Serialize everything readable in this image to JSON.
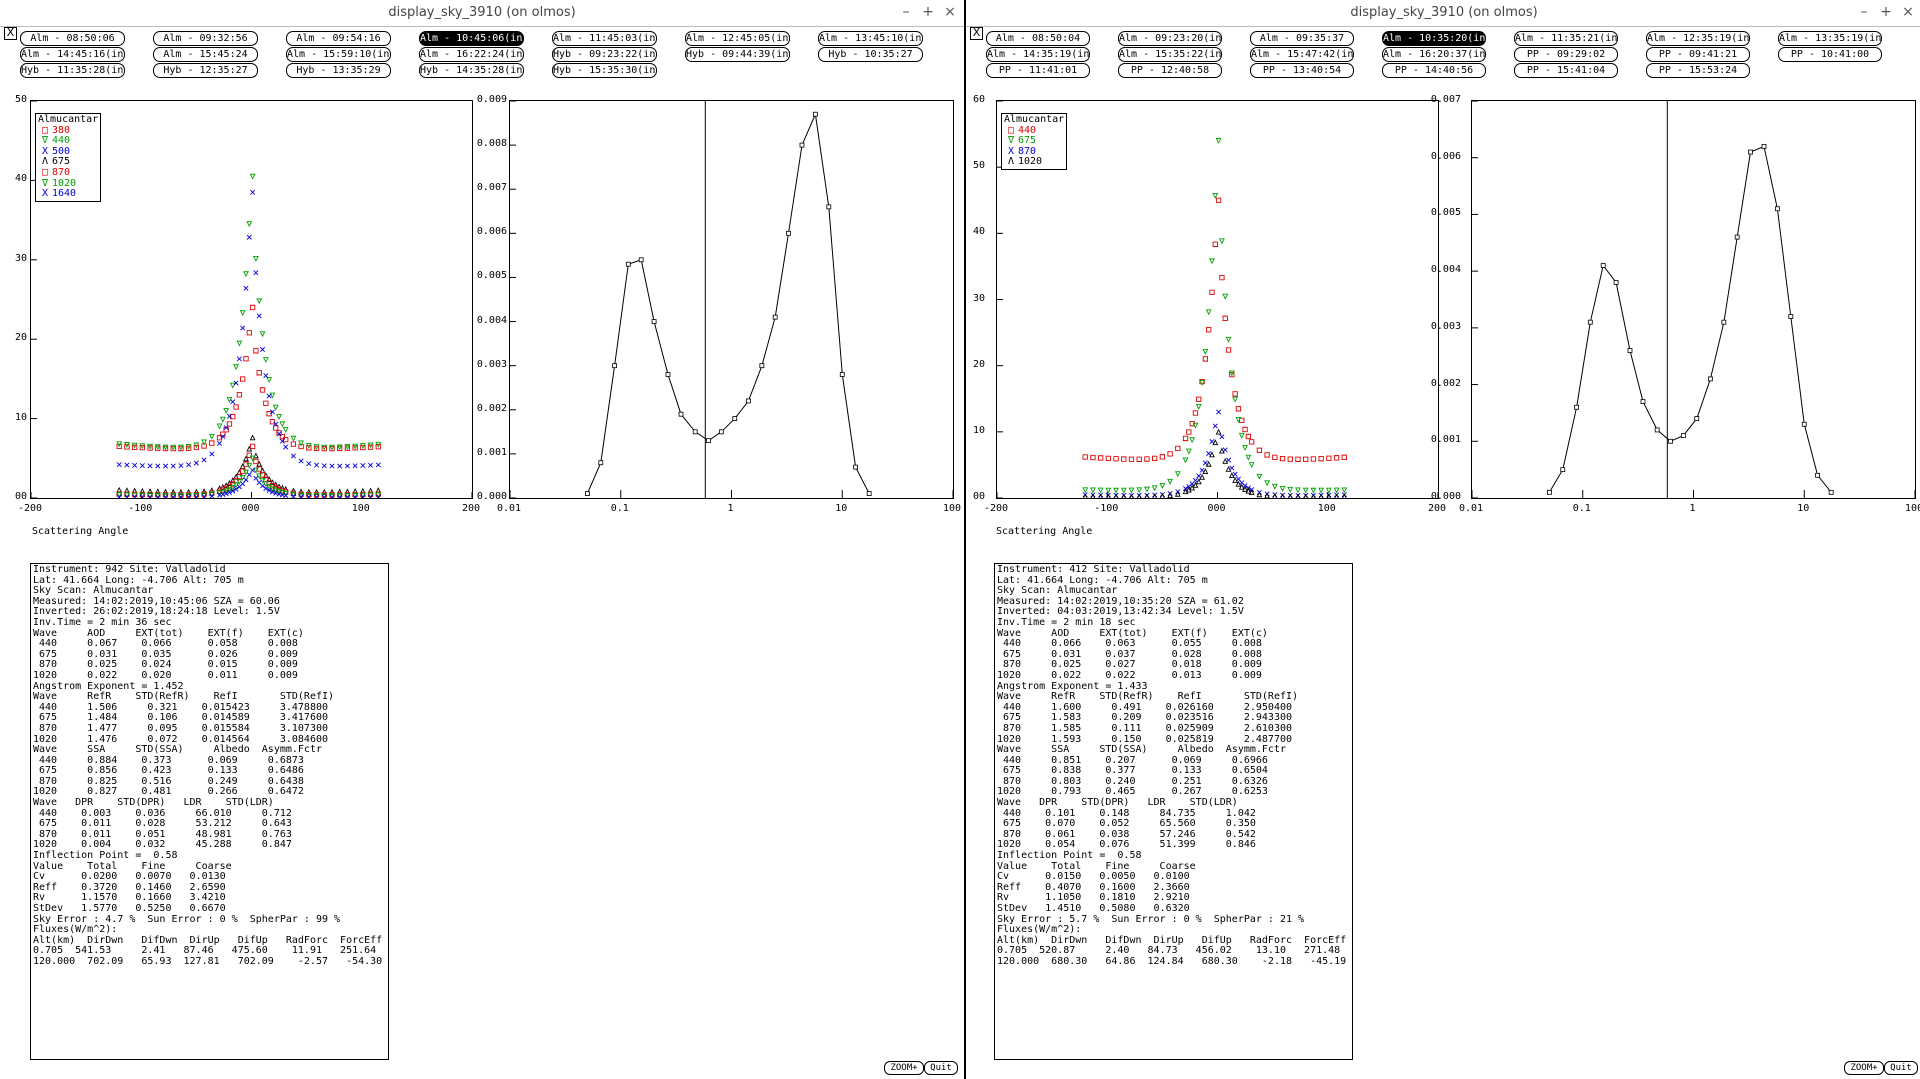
{
  "windows": [
    {
      "title": "display_sky_3910 (on olmos)",
      "buttons": {
        "minimize": "–",
        "maximize": "+",
        "close": "×"
      },
      "closebox": "X",
      "scans": [
        [
          "Alm - 08:50:06",
          "Alm - 09:32:56",
          "Alm - 09:54:16",
          "Alm - 10:45:06(in)",
          "Alm - 11:45:03(in)",
          "Alm - 12:45:05(in)",
          "Alm - 13:45:10(in)"
        ],
        [
          "Alm - 14:45:16(in)",
          "Alm - 15:45:24",
          "Alm - 15:59:10(in)",
          "Alm - 16:22:24(in)",
          "Hyb - 09:23:22(in)",
          "Hyb - 09:44:39(in)",
          "Hyb - 10:35:27"
        ],
        [
          "Hyb - 11:35:28(in)",
          "Hyb - 12:35:27",
          "Hyb - 13:35:29",
          "Hyb - 14:35:28(in)",
          "Hyb - 15:35:30(in)"
        ]
      ],
      "selected_scan": "Alm - 10:45:06(in)",
      "legend_title": "Almucantar",
      "legend": [
        {
          "label": "380",
          "color": "#e00000",
          "symbol": "square"
        },
        {
          "label": "440",
          "color": "#00a000",
          "symbol": "triangle-down"
        },
        {
          "label": "500",
          "color": "#0000e0",
          "symbol": "x"
        },
        {
          "label": "675",
          "color": "#000000",
          "symbol": "triangle-up"
        },
        {
          "label": "870",
          "color": "#e00000",
          "symbol": "square"
        },
        {
          "label": "1020",
          "color": "#00a000",
          "symbol": "triangle-down"
        },
        {
          "label": "1640",
          "color": "#0000e0",
          "symbol": "x"
        }
      ],
      "x_label": "Scattering Angle",
      "info_lines": [
        "Instrument: 942 Site: Valladolid",
        "Lat: 41.664 Long: -4.706 Alt: 705 m",
        "Sky Scan: Almucantar",
        "Measured: 14:02:2019,10:45:06 SZA = 60.06",
        "Inverted: 26:02:2019,18:24:18 Level: 1.5V",
        "Inv.Time = 2 min 36 sec",
        "Wave     AOD     EXT(tot)    EXT(f)    EXT(c)",
        " 440     0.067    0.066      0.058     0.008",
        " 675     0.031    0.035      0.026     0.009",
        " 870     0.025    0.024      0.015     0.009",
        "1020     0.022    0.020      0.011     0.009",
        "Angstrom Exponent = 1.452",
        "Wave     RefR    STD(RefR)    RefI       STD(RefI)",
        " 440     1.506     0.321    0.015423     3.478800",
        " 675     1.484     0.106    0.014589     3.417600",
        " 870     1.477     0.095    0.015584     3.107300",
        "1020     1.476     0.072    0.014564     3.084600",
        "Wave     SSA     STD(SSA)     Albedo  Asymm.Fctr",
        " 440     0.884    0.373      0.069     0.6873",
        " 675     0.856    0.423      0.133     0.6486",
        " 870     0.825    0.516      0.249     0.6438",
        "1020     0.827    0.481      0.266     0.6472",
        "Wave   DPR    STD(DPR)   LDR    STD(LDR)",
        " 440    0.003    0.036     66.010     0.712",
        " 675    0.011    0.028     53.212     0.643",
        " 870    0.011    0.051     48.981     0.763",
        "1020    0.004    0.032     45.288     0.847",
        "Inflection Point =  0.58",
        "Value    Total    Fine     Coarse",
        "Cv      0.0200   0.0070   0.0130",
        "Reff    0.3720   0.1460   2.6590",
        "Rv      1.1570   0.1660   3.4210",
        "StDev   1.5770   0.5250   0.6670",
        "Sky Error : 4.7 %  Sun Error : 0 %  SpherPar : 99 %",
        "Fluxes(W/m^2):",
        "Alt(km)  DirDwn   DifDwn  DirUp   DifUp   RadForc  ForcEff",
        "0.705  541.53     2.41   87.46   475.60    11.91   251.64",
        "120.000  702.09   65.93  127.81   702.09    -2.57   -54.30"
      ],
      "zoom_label": "ZOOM+",
      "quit_label": "Quit",
      "chart_data": [
        {
          "type": "scatter",
          "title": "",
          "xlabel": "Scattering Angle",
          "ylabel": "",
          "xlim": [
            -200,
            200
          ],
          "ylim": [
            0,
            50
          ],
          "xticks": [
            "-200",
            "-100",
            "000",
            "100",
            "200"
          ],
          "yticks": [
            "00",
            "10",
            "20",
            "30",
            "40",
            "50"
          ],
          "legend_position": "top-left",
          "series": [
            {
              "name": "380",
              "peak": 24,
              "edge": 6.5,
              "floor": 6.0
            },
            {
              "name": "440",
              "peak": 40.5,
              "edge": 6.8,
              "floor": 6.0
            },
            {
              "name": "500",
              "peak": 38.5,
              "edge": 4.2,
              "floor": 3.8
            },
            {
              "name": "675",
              "peak": 7.6,
              "edge": 1.0,
              "floor": 0.6
            },
            {
              "name": "870",
              "peak": 6.5,
              "edge": 0.5,
              "floor": 0.3
            },
            {
              "name": "1020",
              "peak": 5.0,
              "edge": 0.4,
              "floor": 0.2
            },
            {
              "name": "1640",
              "peak": 3.5,
              "edge": 0.1,
              "floor": 0.05
            }
          ]
        },
        {
          "type": "line",
          "title": "",
          "xlabel": "",
          "ylabel": "",
          "xscale": "log",
          "xlim": [
            0.01,
            100
          ],
          "ylim": [
            0,
            0.009
          ],
          "xticks": [
            "0.01",
            "0.1",
            "1",
            "10",
            "100"
          ],
          "yticks": [
            "0.000",
            "0.001",
            "0.002",
            "0.003",
            "0.004",
            "0.005",
            "0.006",
            "0.007",
            "0.008",
            "0.009"
          ],
          "vline": 0.58,
          "x": [
            0.05,
            0.066,
            0.088,
            0.117,
            0.153,
            0.2,
            0.267,
            0.35,
            0.47,
            0.62,
            0.81,
            1.07,
            1.42,
            1.88,
            2.48,
            3.27,
            4.33,
            5.72,
            7.56,
            10.0,
            13.2,
            17.5
          ],
          "y": [
            0.0001,
            0.0008,
            0.003,
            0.0053,
            0.0054,
            0.004,
            0.0028,
            0.0019,
            0.0015,
            0.0013,
            0.0015,
            0.0018,
            0.0022,
            0.003,
            0.0041,
            0.006,
            0.008,
            0.0087,
            0.0066,
            0.0028,
            0.0007,
            0.0001
          ]
        }
      ]
    },
    {
      "title": "display_sky_3910 (on olmos)",
      "buttons": {
        "minimize": "–",
        "maximize": "+",
        "close": "×"
      },
      "closebox": "X",
      "scans": [
        [
          "Alm - 08:50:04",
          "Alm - 09:23:20(in)",
          "Alm - 09:35:37",
          "Alm - 10:35:20(in)",
          "Alm - 11:35:21(in)",
          "Alm - 12:35:19(in)",
          "Alm - 13:35:19(in)"
        ],
        [
          "Alm - 14:35:19(in)",
          "Alm - 15:35:22(in)",
          "Alm - 15:47:42(in)",
          "Alm - 16:20:37(in)",
          "PP - 09:29:02",
          "PP - 09:41:21",
          "PP - 10:41:00"
        ],
        [
          "PP - 11:41:01",
          "PP - 12:40:58",
          "PP - 13:40:54",
          "PP - 14:40:56",
          "PP - 15:41:04",
          "PP - 15:53:24"
        ]
      ],
      "selected_scan": "Alm - 10:35:20(in)",
      "legend_title": "Almucantar",
      "legend": [
        {
          "label": "440",
          "color": "#e00000",
          "symbol": "square"
        },
        {
          "label": "675",
          "color": "#00a000",
          "symbol": "triangle-down"
        },
        {
          "label": "870",
          "color": "#0000e0",
          "symbol": "x"
        },
        {
          "label": "1020",
          "color": "#000000",
          "symbol": "triangle-up"
        }
      ],
      "x_label": "Scattering Angle",
      "info_lines": [
        "Instrument: 412 Site: Valladolid",
        "Lat: 41.664 Long: -4.706 Alt: 705 m",
        "Sky Scan: Almucantar",
        "Measured: 14:02:2019,10:35:20 SZA = 61.02",
        "Inverted: 04:03:2019,13:42:34 Level: 1.5V",
        "Inv.Time = 2 min 18 sec",
        "Wave     AOD     EXT(tot)    EXT(f)    EXT(c)",
        " 440     0.066    0.063      0.055     0.008",
        " 675     0.031    0.037      0.028     0.008",
        " 870     0.025    0.027      0.018     0.009",
        "1020     0.022    0.022      0.013     0.009",
        "Angstrom Exponent = 1.433",
        "Wave     RefR    STD(RefR)    RefI       STD(RefI)",
        " 440     1.600     0.491    0.026160     2.950400",
        " 675     1.583     0.209    0.023516     2.943300",
        " 870     1.585     0.111    0.025909     2.610300",
        "1020     1.593     0.150    0.025819     2.487700",
        "Wave     SSA     STD(SSA)     Albedo  Asymm.Fctr",
        " 440     0.851    0.207      0.069     0.6966",
        " 675     0.838    0.377      0.133     0.6504",
        " 870     0.803    0.240      0.251     0.6326",
        "1020     0.793    0.465      0.267     0.6253",
        "Wave   DPR    STD(DPR)   LDR    STD(LDR)",
        " 440    0.101    0.148     84.735     1.042",
        " 675    0.070    0.052     65.560     0.350",
        " 870    0.061    0.038     57.246     0.542",
        "1020    0.054    0.076     51.399     0.846",
        "Inflection Point =  0.58",
        "Value    Total    Fine     Coarse",
        "Cv      0.0150   0.0050   0.0100",
        "Reff    0.4070   0.1600   2.3660",
        "Rv      1.1050   0.1810   2.9210",
        "StDev   1.4510   0.5080   0.6320",
        "Sky Error : 5.7 %  Sun Error : 0 %  SpherPar : 21 %",
        "Fluxes(W/m^2):",
        "Alt(km)  DirDwn   DifDwn  DirUp   DifUp   RadForc  ForcEff",
        "0.705  520.87     2.40   84.73   456.02    13.10   271.48",
        "120.000  680.30   64.86  124.84   680.30    -2.18   -45.19"
      ],
      "zoom_label": "ZOOM+",
      "quit_label": "Quit",
      "chart_data": [
        {
          "type": "scatter",
          "title": "",
          "xlabel": "Scattering Angle",
          "ylabel": "",
          "xlim": [
            -200,
            200
          ],
          "ylim": [
            0,
            60
          ],
          "xticks": [
            "-200",
            "-100",
            "000",
            "100",
            "200"
          ],
          "yticks": [
            "00",
            "10",
            "20",
            "30",
            "40",
            "50",
            "60"
          ],
          "legend_position": "top-left",
          "series": [
            {
              "name": "440",
              "peak": 45,
              "edge": 6.2,
              "floor": 5.5
            },
            {
              "name": "675",
              "peak": 54,
              "edge": 1.2,
              "floor": 1.0
            },
            {
              "name": "870",
              "peak": 13,
              "edge": 0.5,
              "floor": 0.3
            },
            {
              "name": "1020",
              "peak": 10,
              "edge": 0.2,
              "floor": 0.1
            }
          ]
        },
        {
          "type": "line",
          "title": "",
          "xlabel": "",
          "ylabel": "",
          "xscale": "log",
          "xlim": [
            0.01,
            100
          ],
          "ylim": [
            0,
            0.007
          ],
          "xticks": [
            "0.01",
            "0.1",
            "1",
            "10",
            "100"
          ],
          "yticks": [
            "0.000",
            "0.001",
            "0.002",
            "0.003",
            "0.004",
            "0.005",
            "0.006",
            "0.007"
          ],
          "vline": 0.58,
          "x": [
            0.05,
            0.066,
            0.088,
            0.117,
            0.153,
            0.2,
            0.267,
            0.35,
            0.47,
            0.62,
            0.81,
            1.07,
            1.42,
            1.88,
            2.48,
            3.27,
            4.33,
            5.72,
            7.56,
            10.0,
            13.2,
            17.5
          ],
          "y": [
            0.0001,
            0.0005,
            0.0016,
            0.0031,
            0.0041,
            0.0038,
            0.0026,
            0.0017,
            0.0012,
            0.001,
            0.0011,
            0.0014,
            0.0021,
            0.0031,
            0.0046,
            0.0061,
            0.0062,
            0.0051,
            0.0032,
            0.0013,
            0.0004,
            0.0001
          ]
        }
      ]
    }
  ]
}
